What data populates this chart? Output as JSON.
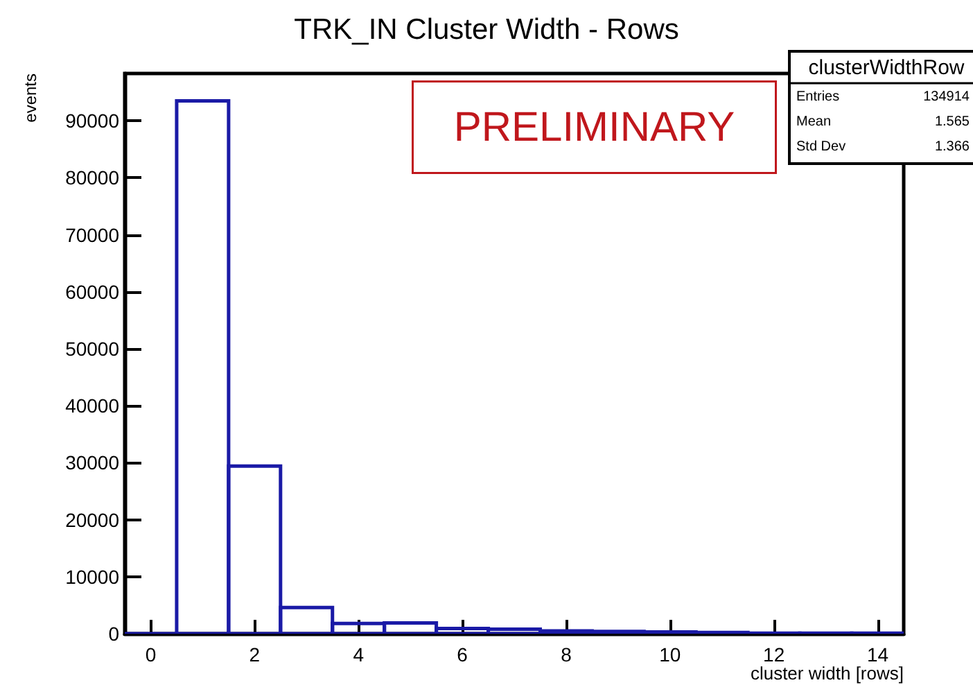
{
  "chart_data": {
    "type": "histogram",
    "title": "TRK_IN Cluster Width - Rows",
    "xlabel": "cluster width [rows]",
    "ylabel": "events",
    "bins": [
      -0.5,
      0.5,
      1.5,
      2.5,
      3.5,
      4.5,
      5.5,
      6.5,
      7.5,
      8.5,
      9.5,
      10.5,
      11.5,
      12.5,
      13.5,
      14.5
    ],
    "values": [
      0,
      93500,
      29400,
      4600,
      1800,
      1900,
      900,
      800,
      500,
      400,
      300,
      200,
      100,
      100,
      100
    ],
    "color": "#1a1aa6",
    "xlim": [
      -0.5,
      14.5
    ],
    "xticks": [
      0,
      2,
      4,
      6,
      8,
      10,
      12,
      14
    ],
    "ylim": [
      0,
      98300
    ],
    "yticks": [
      0,
      10000,
      20000,
      30000,
      40000,
      50000,
      60000,
      70000,
      80000,
      90000
    ],
    "annotations": [
      "PRELIMINARY",
      "clusterWidthRow",
      "Entries",
      "134914",
      "Mean",
      "1.565",
      "Std Dev",
      "1.366"
    ]
  }
}
